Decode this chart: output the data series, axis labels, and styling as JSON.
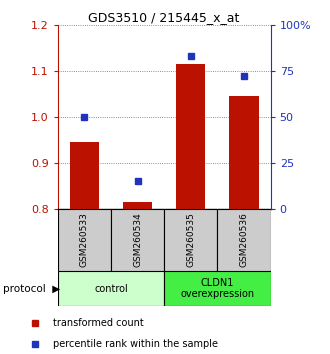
{
  "title": "GDS3510 / 215445_x_at",
  "samples": [
    "GSM260533",
    "GSM260534",
    "GSM260535",
    "GSM260536"
  ],
  "transformed_counts": [
    0.945,
    0.815,
    1.115,
    1.045
  ],
  "percentile_ranks": [
    50,
    15,
    83,
    72
  ],
  "ylim_left": [
    0.8,
    1.2
  ],
  "ylim_right": [
    0,
    100
  ],
  "yticks_left": [
    0.8,
    0.9,
    1.0,
    1.1,
    1.2
  ],
  "yticks_right": [
    0,
    25,
    50,
    75,
    100
  ],
  "ytick_labels_right": [
    "0",
    "25",
    "50",
    "75",
    "100%"
  ],
  "bar_color": "#bb1100",
  "square_color": "#2233bb",
  "groups": [
    {
      "label": "control",
      "start": 0,
      "end": 1,
      "color": "#ccffcc"
    },
    {
      "label": "CLDN1\noverexpression",
      "start": 2,
      "end": 3,
      "color": "#44ee44"
    }
  ],
  "sample_box_color": "#cccccc",
  "grid_color": "#666666",
  "legend_red_label": "transformed count",
  "legend_blue_label": "percentile rank within the sample",
  "protocol_label": "protocol"
}
